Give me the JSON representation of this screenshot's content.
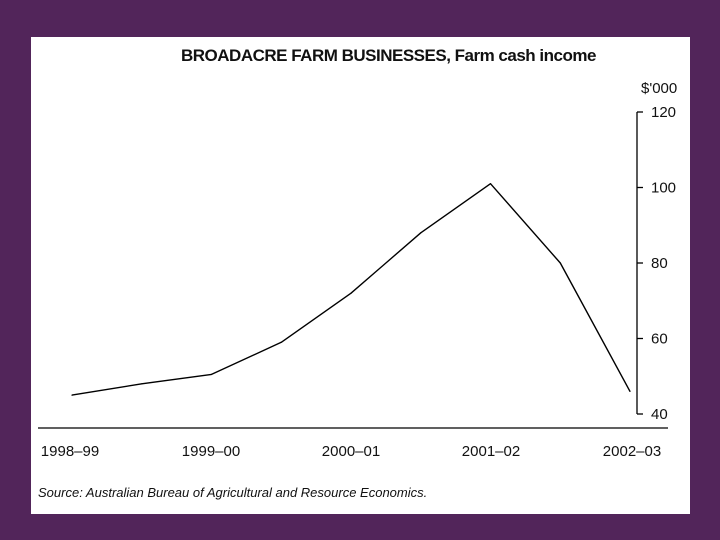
{
  "colors": {
    "frame": "#52255a",
    "panel": "#ffffff",
    "line": "#000000"
  },
  "chart_data": {
    "type": "line",
    "title": "BROADACRE FARM BUSINESSES, Farm cash income",
    "ylabel": "$'000",
    "xlabel": "",
    "categories": [
      "1998–99",
      "1999–00",
      "2000–01",
      "2001–02",
      "2002–03"
    ],
    "x_ticks": [
      "1998–99",
      "1999–00",
      "2000–01",
      "2001–02",
      "2002–03"
    ],
    "y_ticks": [
      "40",
      "60",
      "80",
      "100",
      "120"
    ],
    "y_tick_values": [
      40,
      60,
      80,
      100,
      120
    ],
    "ylim": [
      40,
      120
    ],
    "y_axis_position": "right",
    "grid": false,
    "legend": "none",
    "points": [
      {
        "x": 1998.5,
        "y": 45
      },
      {
        "x": 1999.0,
        "y": 48
      },
      {
        "x": 1999.5,
        "y": 50.5
      },
      {
        "x": 2000.0,
        "y": 59
      },
      {
        "x": 2000.5,
        "y": 72
      },
      {
        "x": 2001.0,
        "y": 88
      },
      {
        "x": 2001.5,
        "y": 101
      },
      {
        "x": 2002.0,
        "y": 80
      },
      {
        "x": 2002.5,
        "y": 46
      }
    ],
    "source": "Source: Australian Bureau of Agricultural and Resource Economics."
  }
}
